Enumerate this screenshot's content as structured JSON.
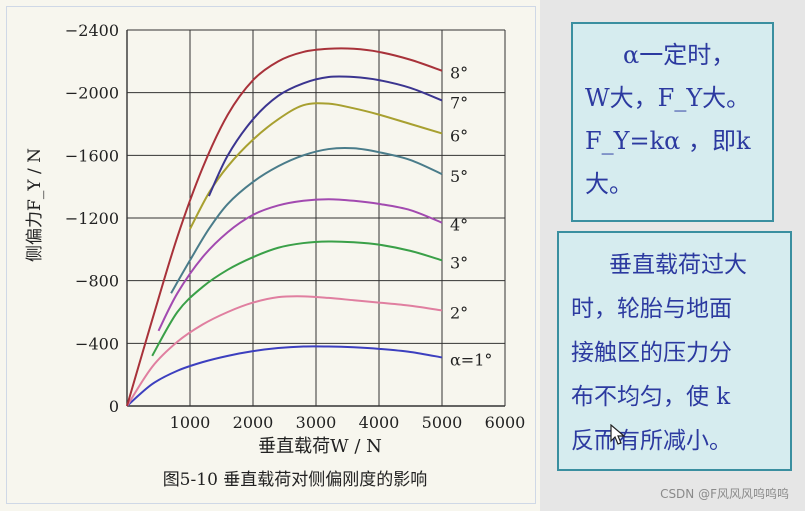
{
  "chart_data": {
    "type": "line",
    "title": "图5-10   垂直载荷对侧偏刚度的影响",
    "xlabel": "垂直载荷W / N",
    "ylabel": "侧偏力F_Y / N",
    "xlim": [
      0,
      6000
    ],
    "ylim": [
      0,
      -2400
    ],
    "xticks": [
      0,
      1000,
      2000,
      3000,
      4000,
      5000,
      6000
    ],
    "yticks": [
      0,
      -400,
      -800,
      -1200,
      -1600,
      -2000,
      -2400
    ],
    "xtick_labels": [
      "1000",
      "2000",
      "3000",
      "4000",
      "5000",
      "6000"
    ],
    "ytick_labels": [
      "0",
      "−400",
      "−800",
      "−1200",
      "−1600",
      "−2000",
      "−2400"
    ],
    "grid": true,
    "series": [
      {
        "name": "α=1°",
        "color": "#3c3fbf",
        "x": [
          0,
          400,
          800,
          1200,
          1600,
          2000,
          2400,
          2800,
          3200,
          3600,
          4000,
          4500,
          5000
        ],
        "y": [
          0,
          -140,
          -225,
          -280,
          -320,
          -350,
          -370,
          -380,
          -380,
          -375,
          -365,
          -345,
          -310
        ]
      },
      {
        "name": "2°",
        "color": "#e07fa0",
        "x": [
          0,
          400,
          800,
          1200,
          1600,
          2000,
          2400,
          2800,
          3200,
          3600,
          4000,
          4500,
          5000
        ],
        "y": [
          0,
          -250,
          -410,
          -520,
          -600,
          -660,
          -695,
          -700,
          -690,
          -675,
          -660,
          -640,
          -610
        ]
      },
      {
        "name": "3°",
        "color": "#3aa048",
        "x": [
          400,
          800,
          1200,
          1600,
          2000,
          2400,
          2800,
          3200,
          3600,
          4000,
          4500,
          5000
        ],
        "y": [
          -320,
          -600,
          -760,
          -870,
          -950,
          -1010,
          -1040,
          -1050,
          -1045,
          -1030,
          -990,
          -930
        ]
      },
      {
        "name": "4°",
        "color": "#a24ab0",
        "x": [
          500,
          800,
          1200,
          1600,
          2000,
          2400,
          2800,
          3200,
          3600,
          4000,
          4500,
          5000
        ],
        "y": [
          -480,
          -720,
          -950,
          -1110,
          -1220,
          -1280,
          -1310,
          -1320,
          -1310,
          -1290,
          -1250,
          -1170
        ]
      },
      {
        "name": "5°",
        "color": "#4a7c8a",
        "x": [
          700,
          1000,
          1300,
          1600,
          2000,
          2400,
          2800,
          3200,
          3600,
          4000,
          4500,
          5000
        ],
        "y": [
          -720,
          -930,
          -1130,
          -1290,
          -1430,
          -1530,
          -1600,
          -1640,
          -1645,
          -1620,
          -1570,
          -1480
        ]
      },
      {
        "name": "6°",
        "color": "#a8a030",
        "x": [
          1000,
          1300,
          1600,
          2000,
          2400,
          2800,
          3200,
          3600,
          4000,
          4500,
          5000
        ],
        "y": [
          -1130,
          -1360,
          -1530,
          -1700,
          -1830,
          -1920,
          -1930,
          -1900,
          -1860,
          -1800,
          -1740
        ]
      },
      {
        "name": "7°",
        "color": "#3b3590",
        "x": [
          1300,
          1600,
          2000,
          2400,
          2800,
          3200,
          3600,
          4000,
          4500,
          5000
        ],
        "y": [
          -1340,
          -1600,
          -1830,
          -1980,
          -2060,
          -2100,
          -2100,
          -2080,
          -2030,
          -1950
        ]
      },
      {
        "name": "8°",
        "color": "#a8323a",
        "x": [
          0,
          400,
          800,
          1200,
          1600,
          2000,
          2400,
          2800,
          3200,
          3600,
          4000,
          4500,
          5000
        ],
        "y": [
          0,
          -550,
          -1080,
          -1520,
          -1860,
          -2080,
          -2200,
          -2260,
          -2280,
          -2280,
          -2260,
          -2210,
          -2140
        ]
      }
    ]
  },
  "notes": {
    "note1_lines": [
      "α一定时，",
      "W大，F_Y大。",
      "F_Y=kα ，即k",
      "大。"
    ],
    "note2_lines": [
      "垂直载荷过大",
      "时，轮胎与地面",
      "接触区的压力分",
      "布不均匀，使 k",
      "反而有所减小。"
    ]
  },
  "watermark": "CSDN @F风风风呜呜呜",
  "colors": {
    "note_bg": "#d6ecef",
    "note_border": "#3a8fa0",
    "note_text": "#2c3aa0"
  },
  "icons": {
    "cursor": "mouse-cursor-icon"
  }
}
